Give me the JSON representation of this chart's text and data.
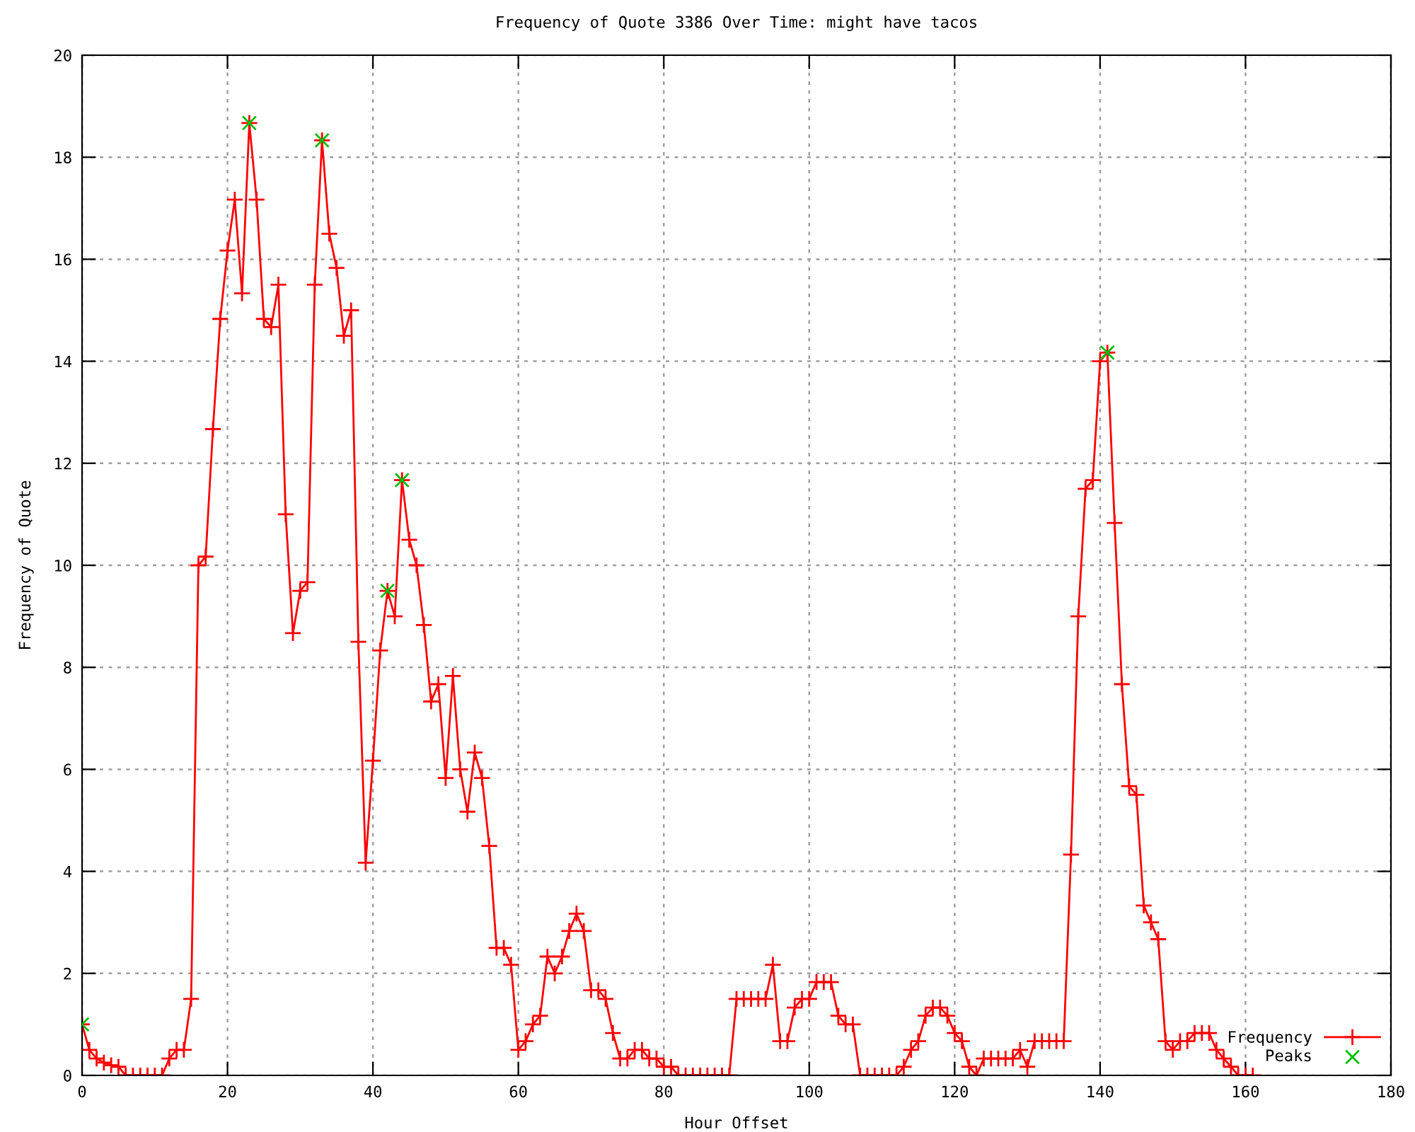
{
  "chart_data": {
    "type": "line",
    "title": "Frequency of Quote 3386 Over Time: might have tacos",
    "xlabel": "Hour Offset",
    "ylabel": "Frequency of Quote",
    "x": [
      0,
      1,
      2,
      3,
      4,
      5,
      6,
      7,
      8,
      9,
      10,
      11,
      12,
      13,
      14,
      15,
      16,
      17,
      18,
      19,
      20,
      21,
      22,
      23,
      24,
      25,
      26,
      27,
      28,
      29,
      30,
      31,
      32,
      33,
      34,
      35,
      36,
      37,
      38,
      39,
      40,
      41,
      42,
      43,
      44,
      45,
      46,
      47,
      48,
      49,
      50,
      51,
      52,
      53,
      54,
      55,
      56,
      57,
      58,
      59,
      60,
      61,
      62,
      63,
      64,
      65,
      66,
      67,
      68,
      69,
      70,
      71,
      72,
      73,
      74,
      75,
      76,
      77,
      78,
      79,
      80,
      81,
      82,
      83,
      84,
      85,
      86,
      87,
      88,
      89,
      90,
      91,
      92,
      93,
      94,
      95,
      96,
      97,
      98,
      99,
      100,
      101,
      102,
      103,
      104,
      105,
      106,
      107,
      108,
      109,
      110,
      111,
      112,
      113,
      114,
      115,
      116,
      117,
      118,
      119,
      120,
      121,
      122,
      123,
      124,
      125,
      126,
      127,
      128,
      129,
      130,
      131,
      132,
      133,
      134,
      135,
      136,
      137,
      138,
      139,
      140,
      141,
      142,
      143,
      144,
      145,
      146,
      147,
      148,
      149,
      150,
      151,
      152,
      153,
      154,
      155,
      156,
      157,
      158,
      159,
      160,
      161
    ],
    "series": [
      {
        "name": "Frequency",
        "color": "#ff0000",
        "marker": "cross",
        "line_style": "solid",
        "values": [
          1.0,
          0.5,
          0.33,
          0.25,
          0.2,
          0.17,
          0,
          0,
          0,
          0,
          0,
          0,
          0.33,
          0.5,
          0.5,
          1.5,
          10.0,
          10.17,
          12.67,
          14.83,
          16.17,
          17.17,
          15.33,
          18.67,
          17.17,
          14.83,
          14.67,
          15.5,
          11.0,
          8.67,
          9.5,
          9.67,
          15.5,
          18.33,
          16.5,
          15.83,
          14.5,
          15.0,
          8.5,
          4.17,
          6.17,
          8.33,
          9.5,
          9.0,
          11.67,
          10.5,
          10.0,
          8.83,
          7.33,
          7.67,
          5.83,
          7.83,
          6.0,
          5.17,
          6.33,
          5.83,
          4.5,
          2.5,
          2.5,
          2.17,
          0.5,
          0.67,
          1.0,
          1.17,
          2.33,
          2.0,
          2.33,
          2.83,
          3.17,
          2.83,
          1.67,
          1.67,
          1.5,
          0.83,
          0.33,
          0.33,
          0.5,
          0.5,
          0.33,
          0.33,
          0.17,
          0.17,
          0,
          0,
          0,
          0,
          0,
          0,
          0,
          0,
          1.5,
          1.5,
          1.5,
          1.5,
          1.5,
          2.17,
          0.67,
          0.67,
          1.33,
          1.5,
          1.5,
          1.83,
          1.83,
          1.83,
          1.17,
          1.0,
          1.0,
          0,
          0,
          0,
          0,
          0,
          0,
          0.17,
          0.5,
          0.67,
          1.17,
          1.33,
          1.33,
          1.17,
          0.83,
          0.67,
          0.17,
          0,
          0.33,
          0.33,
          0.33,
          0.33,
          0.33,
          0.5,
          0.17,
          0.67,
          0.67,
          0.67,
          0.67,
          0.67,
          4.33,
          9.0,
          11.5,
          11.67,
          14.0,
          14.17,
          10.83,
          7.67,
          5.67,
          5.5,
          3.33,
          3.0,
          2.67,
          0.67,
          0.5,
          0.67,
          0.67,
          0.83,
          0.83,
          0.83,
          0.5,
          0.33,
          0.17,
          0,
          0,
          0
        ]
      },
      {
        "name": "Peaks",
        "type": "scatter",
        "color": "#00c000",
        "marker": "x",
        "x": [
          0,
          23,
          33,
          42,
          44,
          141
        ],
        "values": [
          1.0,
          18.67,
          18.33,
          9.5,
          11.67,
          14.17
        ]
      }
    ],
    "xlim": [
      0,
      180
    ],
    "xticks": [
      0,
      20,
      40,
      60,
      80,
      100,
      120,
      140,
      160,
      180
    ],
    "ylim": [
      0,
      20
    ],
    "yticks": [
      0,
      2,
      4,
      6,
      8,
      10,
      12,
      14,
      16,
      18,
      20
    ],
    "grid": true,
    "legend": "bottom right"
  }
}
